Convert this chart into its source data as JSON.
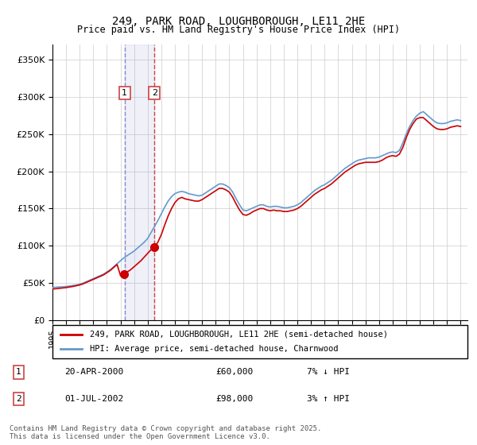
{
  "title_line1": "249, PARK ROAD, LOUGHBOROUGH, LE11 2HE",
  "title_line2": "Price paid vs. HM Land Registry's House Price Index (HPI)",
  "ylabel_ticks": [
    "£0",
    "£50K",
    "£100K",
    "£150K",
    "£200K",
    "£250K",
    "£300K",
    "£350K"
  ],
  "ytick_values": [
    0,
    50000,
    100000,
    150000,
    200000,
    250000,
    300000,
    350000
  ],
  "ylim": [
    0,
    370000
  ],
  "xlim_start": 1995.0,
  "xlim_end": 2025.5,
  "legend_line1": "249, PARK ROAD, LOUGHBOROUGH, LE11 2HE (semi-detached house)",
  "legend_line2": "HPI: Average price, semi-detached house, Charnwood",
  "transaction1_date": "20-APR-2000",
  "transaction1_price": "£60,000",
  "transaction1_hpi": "7% ↓ HPI",
  "transaction1_x": 2000.3,
  "transaction2_date": "01-JUL-2002",
  "transaction2_price": "£98,000",
  "transaction2_hpi": "3% ↑ HPI",
  "transaction2_x": 2002.5,
  "line_color_red": "#cc0000",
  "line_color_blue": "#6699cc",
  "shade_color": "#ddeeff",
  "vline1_color": "#8888cc",
  "vline2_color": "#cc4444",
  "footnote": "Contains HM Land Registry data © Crown copyright and database right 2025.\nThis data is licensed under the Open Government Licence v3.0.",
  "hpi_data_x": [
    1995.0,
    1995.25,
    1995.5,
    1995.75,
    1996.0,
    1996.25,
    1996.5,
    1996.75,
    1997.0,
    1997.25,
    1997.5,
    1997.75,
    1998.0,
    1998.25,
    1998.5,
    1998.75,
    1999.0,
    1999.25,
    1999.5,
    1999.75,
    2000.0,
    2000.25,
    2000.5,
    2000.75,
    2001.0,
    2001.25,
    2001.5,
    2001.75,
    2002.0,
    2002.25,
    2002.5,
    2002.75,
    2003.0,
    2003.25,
    2003.5,
    2003.75,
    2004.0,
    2004.25,
    2004.5,
    2004.75,
    2005.0,
    2005.25,
    2005.5,
    2005.75,
    2006.0,
    2006.25,
    2006.5,
    2006.75,
    2007.0,
    2007.25,
    2007.5,
    2007.75,
    2008.0,
    2008.25,
    2008.5,
    2008.75,
    2009.0,
    2009.25,
    2009.5,
    2009.75,
    2010.0,
    2010.25,
    2010.5,
    2010.75,
    2011.0,
    2011.25,
    2011.5,
    2011.75,
    2012.0,
    2012.25,
    2012.5,
    2012.75,
    2013.0,
    2013.25,
    2013.5,
    2013.75,
    2014.0,
    2014.25,
    2014.5,
    2014.75,
    2015.0,
    2015.25,
    2015.5,
    2015.75,
    2016.0,
    2016.25,
    2016.5,
    2016.75,
    2017.0,
    2017.25,
    2017.5,
    2017.75,
    2018.0,
    2018.25,
    2018.5,
    2018.75,
    2019.0,
    2019.25,
    2019.5,
    2019.75,
    2020.0,
    2020.25,
    2020.5,
    2020.75,
    2021.0,
    2021.25,
    2021.5,
    2021.75,
    2022.0,
    2022.25,
    2022.5,
    2022.75,
    2023.0,
    2023.25,
    2023.5,
    2023.75,
    2024.0,
    2024.25,
    2024.5,
    2024.75,
    2025.0
  ],
  "hpi_data_y": [
    44000,
    44500,
    44800,
    45000,
    45500,
    46000,
    46800,
    47500,
    48500,
    50000,
    52000,
    54000,
    56000,
    58000,
    60000,
    62000,
    65000,
    68000,
    72000,
    76000,
    80000,
    84000,
    87000,
    90000,
    93000,
    97000,
    101000,
    105000,
    110000,
    118000,
    126000,
    134000,
    143000,
    152000,
    160000,
    166000,
    170000,
    172000,
    173000,
    172000,
    170000,
    169000,
    168000,
    167000,
    168000,
    171000,
    174000,
    177000,
    180000,
    183000,
    183000,
    181000,
    178000,
    172000,
    163000,
    155000,
    148000,
    147000,
    149000,
    151000,
    153000,
    155000,
    155000,
    153000,
    152000,
    153000,
    153000,
    152000,
    151000,
    151000,
    152000,
    153000,
    155000,
    158000,
    162000,
    166000,
    170000,
    174000,
    177000,
    180000,
    182000,
    185000,
    188000,
    192000,
    196000,
    200000,
    204000,
    207000,
    210000,
    213000,
    215000,
    216000,
    217000,
    218000,
    218000,
    218000,
    219000,
    221000,
    223000,
    225000,
    226000,
    225000,
    228000,
    238000,
    250000,
    260000,
    268000,
    274000,
    278000,
    280000,
    276000,
    272000,
    268000,
    265000,
    264000,
    264000,
    265000,
    267000,
    268000,
    269000,
    268000
  ],
  "price_data_x": [
    1995.0,
    1995.25,
    1995.5,
    1995.75,
    1996.0,
    1996.25,
    1996.5,
    1996.75,
    1997.0,
    1997.25,
    1997.5,
    1997.75,
    1998.0,
    1998.25,
    1998.5,
    1998.75,
    1999.0,
    1999.25,
    1999.5,
    1999.75,
    2000.0,
    2000.25,
    2000.5,
    2000.75,
    2001.0,
    2001.25,
    2001.5,
    2001.75,
    2002.0,
    2002.25,
    2002.5,
    2002.75,
    2003.0,
    2003.25,
    2003.5,
    2003.75,
    2004.0,
    2004.25,
    2004.5,
    2004.75,
    2005.0,
    2005.25,
    2005.5,
    2005.75,
    2006.0,
    2006.25,
    2006.5,
    2006.75,
    2007.0,
    2007.25,
    2007.5,
    2007.75,
    2008.0,
    2008.25,
    2008.5,
    2008.75,
    2009.0,
    2009.25,
    2009.5,
    2009.75,
    2010.0,
    2010.25,
    2010.5,
    2010.75,
    2011.0,
    2011.25,
    2011.5,
    2011.75,
    2012.0,
    2012.25,
    2012.5,
    2012.75,
    2013.0,
    2013.25,
    2013.5,
    2013.75,
    2014.0,
    2014.25,
    2014.5,
    2014.75,
    2015.0,
    2015.25,
    2015.5,
    2015.75,
    2016.0,
    2016.25,
    2016.5,
    2016.75,
    2017.0,
    2017.25,
    2017.5,
    2017.75,
    2018.0,
    2018.25,
    2018.5,
    2018.75,
    2019.0,
    2019.25,
    2019.5,
    2019.75,
    2020.0,
    2020.25,
    2020.5,
    2020.75,
    2021.0,
    2021.25,
    2021.5,
    2021.75,
    2022.0,
    2022.25,
    2022.5,
    2022.75,
    2023.0,
    2023.25,
    2023.5,
    2023.75,
    2024.0,
    2024.25,
    2024.5,
    2024.75,
    2025.0
  ],
  "price_data_y": [
    42000,
    42500,
    43000,
    43500,
    44000,
    44800,
    45500,
    46500,
    47500,
    49000,
    51000,
    53000,
    55000,
    57000,
    59000,
    61000,
    64000,
    67000,
    71000,
    75000,
    60000,
    62000,
    65000,
    68000,
    72000,
    76000,
    80000,
    85000,
    90000,
    95000,
    98000,
    105000,
    115000,
    128000,
    140000,
    150000,
    158000,
    163000,
    165000,
    163000,
    162000,
    161000,
    160000,
    160000,
    162000,
    165000,
    168000,
    171000,
    174000,
    177000,
    177000,
    175000,
    172000,
    165000,
    156000,
    148000,
    142000,
    141000,
    143000,
    146000,
    148000,
    150000,
    150000,
    148000,
    147000,
    148000,
    147000,
    147000,
    146000,
    146000,
    147000,
    148000,
    150000,
    153000,
    157000,
    161000,
    165000,
    169000,
    172000,
    175000,
    177000,
    180000,
    183000,
    187000,
    191000,
    195000,
    199000,
    202000,
    205000,
    208000,
    210000,
    211000,
    212000,
    212000,
    212000,
    212000,
    213000,
    215000,
    218000,
    220000,
    221000,
    220000,
    223000,
    232000,
    245000,
    256000,
    264000,
    270000,
    272000,
    272000,
    268000,
    264000,
    260000,
    257000,
    256000,
    256000,
    257000,
    259000,
    260000,
    261000,
    260000
  ]
}
